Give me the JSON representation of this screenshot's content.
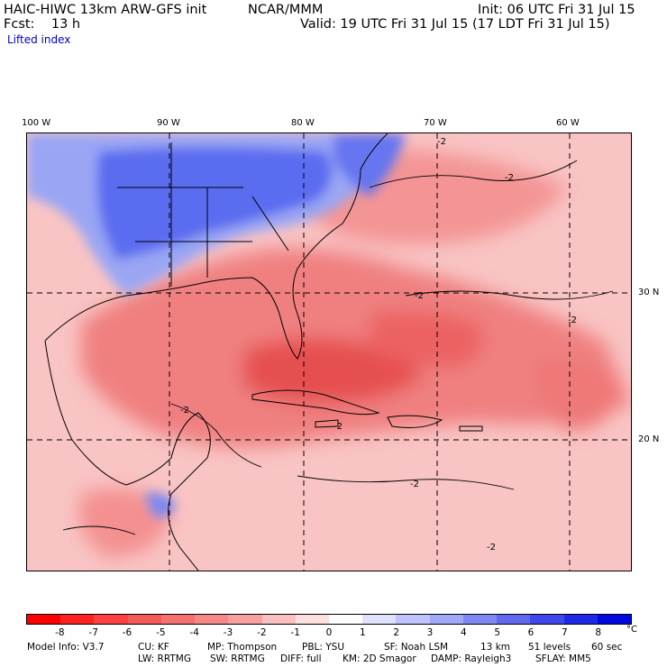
{
  "header": {
    "model": "HAIC-HIWC 13km ARW-GFS init",
    "org": "NCAR/MMM",
    "init": "Init: 06 UTC Fri 31 Jul 15",
    "fcst": "Fcst:    13 h",
    "valid": "Valid: 19 UTC Fri 31 Jul 15 (17 LDT Fri 31 Jul 15)",
    "field": "Lifted index"
  },
  "map": {
    "lon_labels": [
      "100 W",
      "90 W",
      "80 W",
      "70 W",
      "60 W"
    ],
    "lat_labels": [
      "30 N",
      "20 N"
    ],
    "contour_labels": [
      "-2",
      "-2",
      "-2",
      "-2",
      "-2",
      "-2",
      "-2",
      "-2"
    ],
    "colors": {
      "cold_blue": "#5a6cf0",
      "mid_blue": "#9aa6f4",
      "light_pink": "#f4a6a6",
      "mid_red": "#ee6e6e",
      "deep_red": "#e64040"
    }
  },
  "colorbar": {
    "ticks": [
      "-8",
      "-7",
      "-6",
      "-5",
      "-4",
      "-3",
      "-2",
      "-1",
      "0",
      "1",
      "2",
      "3",
      "4",
      "5",
      "6",
      "7",
      "8"
    ],
    "unit": "°C",
    "colors": [
      "#ff0000",
      "#ff2020",
      "#ff4040",
      "#f55858",
      "#f57070",
      "#f58888",
      "#f8a0a0",
      "#fac0c0",
      "#fde0e0",
      "#ffffff",
      "#e0e0ff",
      "#c0c4fc",
      "#a0a8f8",
      "#8088f4",
      "#6068f0",
      "#4048ec",
      "#2028e8",
      "#0008e0"
    ]
  },
  "model_info": {
    "line1": [
      "Model Info: V3.7",
      "CU: KF",
      "MP: Thompson",
      "PBL: YSU",
      "SF: Noah LSM",
      "13 km",
      "51 levels",
      "60 sec"
    ],
    "line2": [
      "LW: RRTMG",
      "SW: RRTMG",
      "DIFF: full",
      "KM: 2D Smagor",
      "DAMP: Rayleigh3",
      "SFLAY: MM5"
    ]
  }
}
